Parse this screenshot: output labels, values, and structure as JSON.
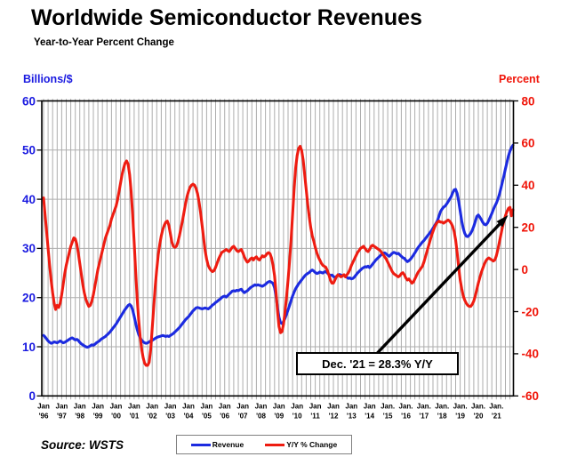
{
  "chart_data": {
    "type": "line",
    "title": "Worldwide Semiconductor Revenues",
    "subtitle": "Year-to-Year Percent Change",
    "source": "Source: WSTS",
    "left_axis": {
      "label": "Billions/$",
      "color": "#1a1ae0",
      "min": 0,
      "max": 60,
      "ticks": [
        0,
        10,
        20,
        30,
        40,
        50,
        60
      ]
    },
    "right_axis": {
      "label": "Percent",
      "color": "#f01408",
      "min": -60,
      "max": 80,
      "ticks": [
        -60,
        -40,
        -20,
        0,
        20,
        40,
        60,
        80
      ]
    },
    "x_axis": {
      "start": "1996-01",
      "end": "2021-12",
      "gridline_every_months": 3,
      "tick_labels": [
        {
          "m": "Jan",
          "y": "'96"
        },
        {
          "m": "Jan",
          "y": "'97"
        },
        {
          "m": "Jan",
          "y": "'98"
        },
        {
          "m": "Jan",
          "y": "'99"
        },
        {
          "m": "Jan",
          "y": "'00"
        },
        {
          "m": "Jan",
          "y": "'01"
        },
        {
          "m": "Jan",
          "y": "'02"
        },
        {
          "m": "Jan",
          "y": "'03"
        },
        {
          "m": "Jan",
          "y": "'04"
        },
        {
          "m": "Jan",
          "y": "'05"
        },
        {
          "m": "Jan",
          "y": "'06"
        },
        {
          "m": "Jan",
          "y": "'07"
        },
        {
          "m": "Jan",
          "y": "'08"
        },
        {
          "m": "Jan",
          "y": "'09"
        },
        {
          "m": "Jan",
          "y": "'10"
        },
        {
          "m": "Jan",
          "y": "'11"
        },
        {
          "m": "Jan",
          "y": "'12"
        },
        {
          "m": "Jan",
          "y": "'13"
        },
        {
          "m": "Jan",
          "y": "'14"
        },
        {
          "m": "Jan.",
          "y": "'15"
        },
        {
          "m": "Jan.",
          "y": "'16"
        },
        {
          "m": "Jan.",
          "y": "'17"
        },
        {
          "m": "Jan.",
          "y": "'18"
        },
        {
          "m": "Jan.",
          "y": "'19"
        },
        {
          "m": "Jan.",
          "y": "'20"
        },
        {
          "m": "Jan.",
          "y": "'21"
        }
      ]
    },
    "annotation": {
      "text": "Dec. '21 = 28.3% Y/Y",
      "points_to": "final Y/Y % Change value, Dec 2021"
    },
    "series": [
      {
        "name": "Revenue",
        "axis": "left",
        "unit": "USD billions per month",
        "color": "#1c2be0",
        "values": [
          12.3,
          12.0,
          11.6,
          11.2,
          10.9,
          10.7,
          10.8,
          11.0,
          10.9,
          10.8,
          11.0,
          11.2,
          11.0,
          10.8,
          10.9,
          11.1,
          11.3,
          11.5,
          11.7,
          11.8,
          11.6,
          11.4,
          11.5,
          11.3,
          10.9,
          10.6,
          10.4,
          10.2,
          10.0,
          9.9,
          10.0,
          10.2,
          10.4,
          10.3,
          10.5,
          10.8,
          11.0,
          11.2,
          11.5,
          11.7,
          11.9,
          12.1,
          12.4,
          12.7,
          13.0,
          13.4,
          13.8,
          14.2,
          14.6,
          15.1,
          15.6,
          16.1,
          16.6,
          17.1,
          17.6,
          18.0,
          18.4,
          18.6,
          18.3,
          17.5,
          16.2,
          14.8,
          13.5,
          12.5,
          11.8,
          11.3,
          11.0,
          10.8,
          10.7,
          10.8,
          11.0,
          11.2,
          11.3,
          11.5,
          11.7,
          11.9,
          12.0,
          12.1,
          12.2,
          12.3,
          12.2,
          12.1,
          12.2,
          12.1,
          12.3,
          12.5,
          12.7,
          13.0,
          13.3,
          13.6,
          13.9,
          14.3,
          14.7,
          15.1,
          15.5,
          15.8,
          16.1,
          16.5,
          16.9,
          17.3,
          17.6,
          17.9,
          18.0,
          17.9,
          17.8,
          17.7,
          17.8,
          17.9,
          17.8,
          17.7,
          17.9,
          18.2,
          18.5,
          18.7,
          19.0,
          19.2,
          19.5,
          19.7,
          20.0,
          20.2,
          20.3,
          20.1,
          20.4,
          20.7,
          21.0,
          21.3,
          21.4,
          21.3,
          21.5,
          21.4,
          21.6,
          21.7,
          21.3,
          21.0,
          21.2,
          21.4,
          21.7,
          22.0,
          22.2,
          22.4,
          22.6,
          22.5,
          22.6,
          22.5,
          22.4,
          22.3,
          22.5,
          22.7,
          23.0,
          23.2,
          23.3,
          23.1,
          22.9,
          22.0,
          20.3,
          17.9,
          16.0,
          14.9,
          14.7,
          15.1,
          15.8,
          16.6,
          17.5,
          18.4,
          19.4,
          20.3,
          21.1,
          21.8,
          22.3,
          22.8,
          23.2,
          23.6,
          24.0,
          24.4,
          24.7,
          24.9,
          25.1,
          25.4,
          25.6,
          25.4,
          25.1,
          24.9,
          25.0,
          25.2,
          25.1,
          25.0,
          25.2,
          25.3,
          25.0,
          24.7,
          24.5,
          24.6,
          24.3,
          24.1,
          24.3,
          24.5,
          24.7,
          24.6,
          24.4,
          24.6,
          24.3,
          24.1,
          23.9,
          24.0,
          23.8,
          23.9,
          24.2,
          24.6,
          25.0,
          25.3,
          25.6,
          25.9,
          26.1,
          26.3,
          26.2,
          26.4,
          26.1,
          26.4,
          26.8,
          27.2,
          27.6,
          27.9,
          28.2,
          28.5,
          28.8,
          29.0,
          29.1,
          28.9,
          28.6,
          28.4,
          28.7,
          29.0,
          29.2,
          29.1,
          28.9,
          29.0,
          28.7,
          28.4,
          28.1,
          28.0,
          27.6,
          27.3,
          27.5,
          27.8,
          28.2,
          28.6,
          29.1,
          29.6,
          30.1,
          30.5,
          30.9,
          31.3,
          31.6,
          32.0,
          32.4,
          32.8,
          33.2,
          33.6,
          34.1,
          34.6,
          35.1,
          35.7,
          36.6,
          37.5,
          38.0,
          38.4,
          38.6,
          39.0,
          39.5,
          40.0,
          40.5,
          41.3,
          41.9,
          42.0,
          41.2,
          39.6,
          37.6,
          35.6,
          34.1,
          33.1,
          32.5,
          32.4,
          32.7,
          33.1,
          33.7,
          34.5,
          35.5,
          36.5,
          36.8,
          36.4,
          35.9,
          35.3,
          34.9,
          34.8,
          35.1,
          35.7,
          36.4,
          37.1,
          37.9,
          38.6,
          39.2,
          40.0,
          41.0,
          42.2,
          43.5,
          44.8,
          46.2,
          47.5,
          48.8,
          49.8,
          50.5,
          51.0
        ]
      },
      {
        "name": "Y/Y % Change",
        "axis": "right",
        "unit": "percent",
        "color": "#ee1c11",
        "values": [
          34,
          26,
          18,
          10,
          2,
          -5,
          -11,
          -16,
          -19,
          -17,
          -18,
          -16,
          -12,
          -7,
          -2,
          2,
          5,
          8,
          11,
          13,
          15,
          14.5,
          12,
          8,
          3,
          -2,
          -7,
          -11,
          -14,
          -16,
          -17.5,
          -17,
          -15,
          -12,
          -8,
          -4,
          0,
          3,
          6,
          9,
          12,
          15,
          17,
          19,
          21,
          24,
          26,
          28,
          30,
          33,
          37,
          41,
          45,
          48,
          50.5,
          51.5,
          50,
          45,
          37,
          26,
          13,
          -1,
          -14,
          -24,
          -32,
          -38,
          -42,
          -44.5,
          -45.5,
          -45.5,
          -44,
          -38,
          -28,
          -18,
          -8,
          0,
          7,
          12,
          16,
          19,
          21,
          22.5,
          23,
          21,
          17,
          13,
          11,
          10.5,
          11,
          13,
          16,
          19.5,
          23,
          27,
          31,
          34.5,
          37,
          39,
          40,
          40.5,
          40,
          38.5,
          36,
          32,
          27,
          21,
          15,
          9,
          5,
          2,
          0.5,
          -0.5,
          -1,
          -0.5,
          1,
          3,
          5,
          6.5,
          8,
          8.5,
          9,
          9.5,
          9,
          8.5,
          9.5,
          10.5,
          11,
          10,
          9,
          8.5,
          9,
          9.5,
          8,
          6,
          4.5,
          3.5,
          4,
          5,
          5.5,
          4.5,
          5.5,
          6,
          5,
          4.5,
          5.5,
          6.5,
          6,
          6.5,
          7.5,
          8,
          7.5,
          5.5,
          2,
          -3,
          -11,
          -20,
          -27,
          -30,
          -29.5,
          -26,
          -20,
          -13,
          -5,
          4,
          14,
          26,
          38,
          48,
          54,
          57.5,
          58.5,
          56.5,
          52,
          45,
          38,
          31,
          25,
          20,
          16,
          13.5,
          10.5,
          8,
          6,
          4.5,
          3,
          2,
          1.5,
          1,
          -0.5,
          -2.5,
          -5,
          -6.5,
          -6.5,
          -5,
          -3.5,
          -2.5,
          -3,
          -3.5,
          -3,
          -2.5,
          -3.5,
          -2.5,
          -1.5,
          0,
          2,
          3.5,
          5,
          6.5,
          8,
          9,
          10,
          10.5,
          11,
          10,
          9,
          8.5,
          9.5,
          11,
          11.5,
          11,
          10.5,
          10,
          9.5,
          9,
          8,
          7,
          6,
          5,
          3.5,
          2,
          0.5,
          -1,
          -2,
          -2.5,
          -3,
          -3.5,
          -3,
          -2,
          -1.5,
          -2.5,
          -4,
          -5,
          -4.5,
          -5.5,
          -6.5,
          -6,
          -4.5,
          -3,
          -1.5,
          -0.5,
          0.5,
          1.5,
          3.5,
          6,
          8.5,
          11,
          13.5,
          16,
          18,
          20,
          21.5,
          22.5,
          23,
          22.5,
          22.5,
          22,
          22.5,
          23,
          23.5,
          23,
          22,
          20.5,
          18,
          14,
          8,
          1,
          -5,
          -9,
          -12.5,
          -14.5,
          -16,
          -17,
          -17.5,
          -17.5,
          -16.5,
          -15,
          -12.5,
          -9.5,
          -6.5,
          -4,
          -1.5,
          0.5,
          2.5,
          4,
          5,
          5.5,
          5,
          4.5,
          4,
          4.5,
          6.5,
          9.5,
          13,
          16.5,
          20,
          23,
          25.5,
          27.5,
          29,
          29.5,
          25.5,
          28.3
        ]
      }
    ],
    "style": {
      "grid_color": "#adadad",
      "border_color": "#000000",
      "background": "#ffffff"
    }
  }
}
